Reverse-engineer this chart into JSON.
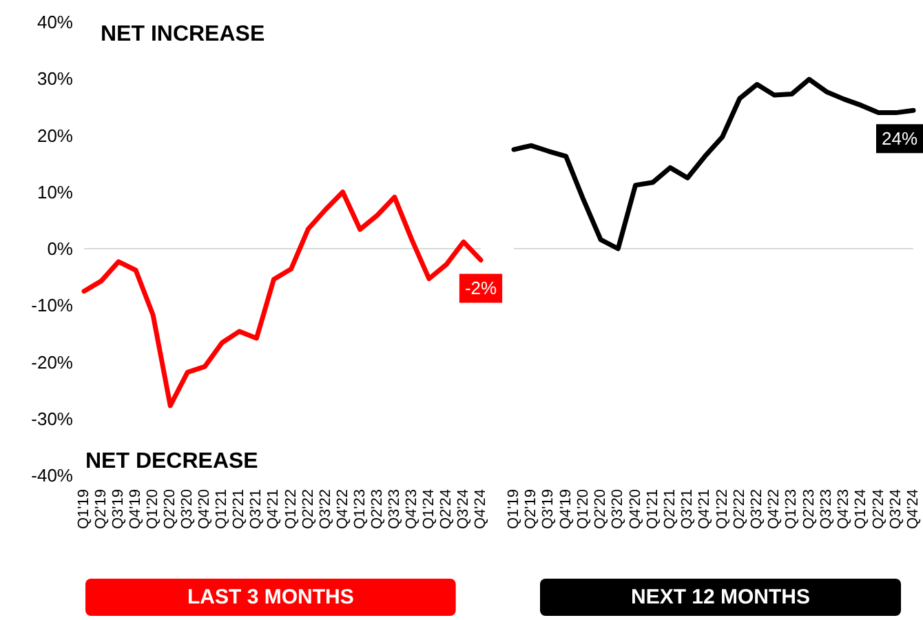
{
  "chart_data": [
    {
      "type": "line",
      "title": "LAST 3 MONTHS",
      "annotations": [
        "NET INCREASE",
        "NET DECREASE"
      ],
      "categories": [
        "Q1'19",
        "Q2'19",
        "Q3'19",
        "Q4'19",
        "Q1'20",
        "Q2'20",
        "Q3'20",
        "Q4'20",
        "Q1'21",
        "Q2'21",
        "Q3'21",
        "Q4'21",
        "Q1'22",
        "Q2'22",
        "Q3'22",
        "Q4'22",
        "Q1'23",
        "Q2'23",
        "Q3'23",
        "Q4'23",
        "Q1'24",
        "Q2'24",
        "Q3'24",
        "Q4'24"
      ],
      "series": [
        {
          "color": "#ff0000",
          "values": [
            -7.5,
            -5.7,
            -2.3,
            -3.8,
            -11.7,
            -27.7,
            -21.8,
            -20.8,
            -16.6,
            -14.6,
            -15.8,
            -5.4,
            -3.6,
            3.5,
            6.9,
            10,
            3.4,
            5.9,
            9.1,
            1.6,
            -5.3,
            -2.8,
            1.2,
            -2
          ],
          "value_labels": [
            null,
            null,
            null,
            null,
            null,
            null,
            null,
            null,
            null,
            null,
            null,
            null,
            null,
            null,
            null,
            null,
            null,
            null,
            null,
            null,
            null,
            null,
            null,
            "-2%"
          ]
        }
      ],
      "ylim": [
        -40,
        40
      ],
      "yticks": [
        {
          "value": -40,
          "label": "-40%"
        },
        {
          "value": -30,
          "label": "-30%"
        },
        {
          "value": -20,
          "label": "-20%"
        },
        {
          "value": -10,
          "label": "-10%"
        },
        {
          "value": 0,
          "label": "0%"
        },
        {
          "value": 10,
          "label": "10%"
        },
        {
          "value": 20,
          "label": "20%"
        },
        {
          "value": 30,
          "label": "30%"
        },
        {
          "value": 40,
          "label": "40%"
        }
      ],
      "grid": false,
      "ref_lines": [
        {
          "axis": "y",
          "value": 0,
          "color": "#d9d9d9"
        }
      ]
    },
    {
      "type": "line",
      "title": "NEXT 12 MONTHS",
      "categories": [
        "Q1'19",
        "Q2'19",
        "Q3'19",
        "Q4'19",
        "Q1'20",
        "Q2'20",
        "Q3'20",
        "Q4'20",
        "Q1'21",
        "Q2'21",
        "Q3'21",
        "Q4'21",
        "Q1'22",
        "Q2'22",
        "Q3'22",
        "Q4'22",
        "Q1'23",
        "Q2'23",
        "Q3'23",
        "Q4'23",
        "Q1'24",
        "Q2'24",
        "Q3'24",
        "Q4'24"
      ],
      "series": [
        {
          "color": "#000000",
          "values": [
            17.5,
            18.2,
            17.2,
            16.3,
            8.7,
            1.6,
            0,
            11.2,
            11.7,
            14.3,
            12.5,
            16.3,
            19.7,
            26.5,
            29,
            27.1,
            27.3,
            29.9,
            27.7,
            26.4,
            25.3,
            24,
            24,
            24.4
          ],
          "value_labels": [
            null,
            null,
            null,
            null,
            null,
            null,
            null,
            null,
            null,
            null,
            null,
            null,
            null,
            null,
            null,
            null,
            null,
            null,
            null,
            null,
            null,
            null,
            null,
            "24%"
          ]
        }
      ],
      "ylim": [
        -40,
        40
      ],
      "grid": false,
      "tick_labels": "x",
      "ref_lines": [
        {
          "axis": "y",
          "value": 0,
          "color": "#d9d9d9"
        }
      ]
    }
  ]
}
